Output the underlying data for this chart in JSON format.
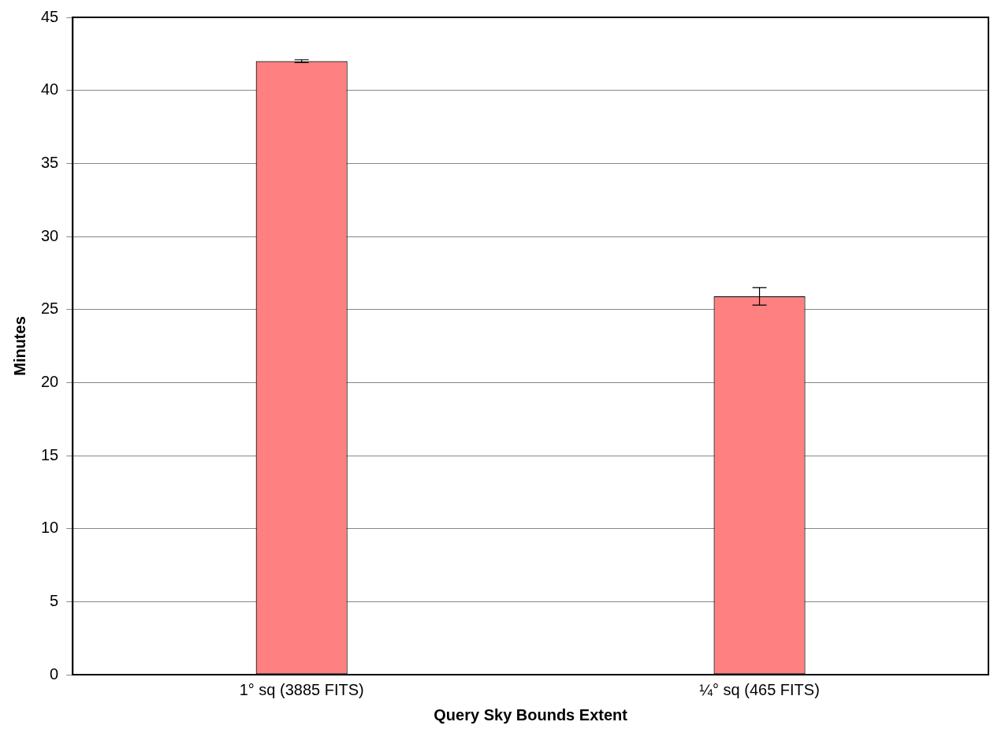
{
  "chart_data": {
    "type": "bar",
    "xlabel": "Query Sky Bounds Extent",
    "ylabel": "Minutes",
    "categories": [
      "1° sq (3885 FITS)",
      "¼° sq (465 FITS)"
    ],
    "values": [
      42.0,
      25.9
    ],
    "errors": [
      0.1,
      0.6
    ],
    "color": "#ff8080",
    "ylim": [
      0,
      45
    ],
    "yticks": [
      0,
      5,
      10,
      15,
      20,
      25,
      30,
      35,
      40,
      45
    ],
    "grid": "y"
  }
}
